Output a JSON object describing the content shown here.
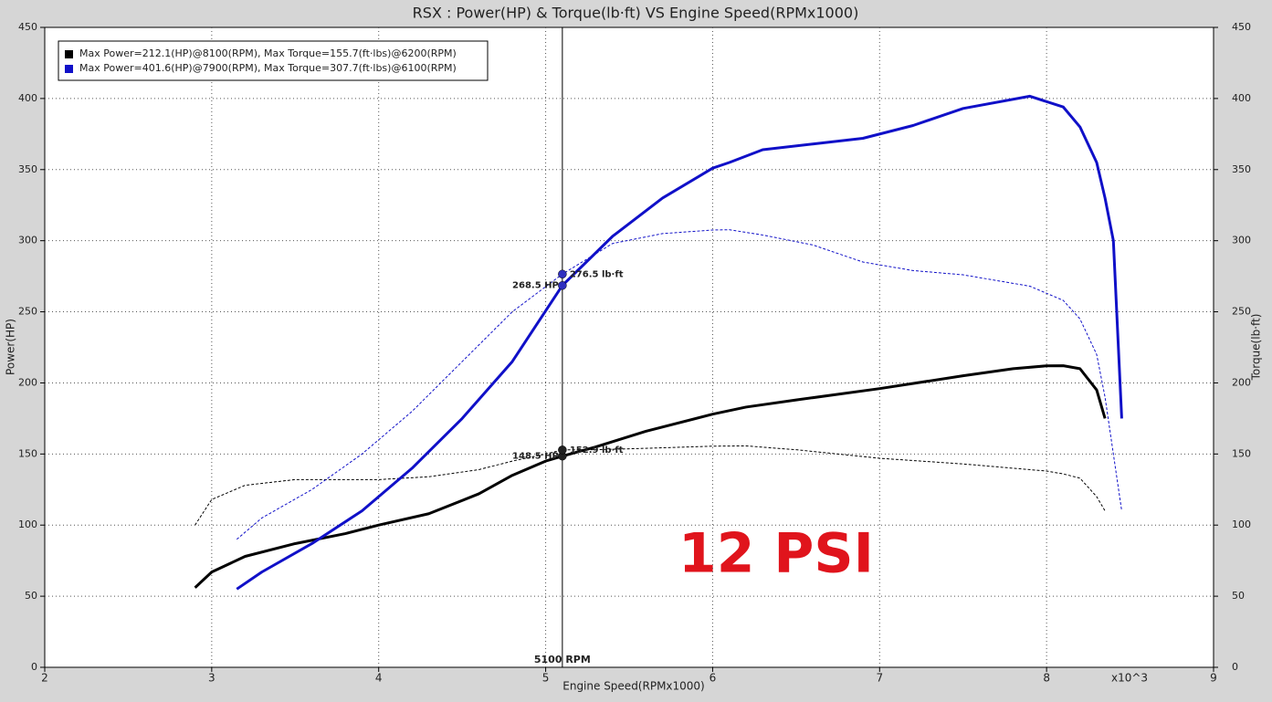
{
  "chart_data": {
    "type": "line",
    "title": "RSX : Power(HP) & Torque(lb·ft) VS Engine Speed(RPMx1000)",
    "xlabel": "Engine Speed(RPMx1000)",
    "ylabel": "Power(HP)",
    "y2label": "Torque(lb·ft)",
    "x_multiplier": "x10^3",
    "annotation": "12 PSI",
    "annotation_color": "#e0141c",
    "xlim": [
      2,
      9
    ],
    "xticks": [
      2,
      3,
      4,
      5,
      6,
      7,
      8,
      9
    ],
    "ylim": [
      0,
      450
    ],
    "yticks": [
      0,
      50,
      100,
      150,
      200,
      250,
      300,
      350,
      400,
      450
    ],
    "y2lim": [
      0,
      450
    ],
    "y2ticks": [
      0,
      50,
      100,
      150,
      200,
      250,
      300,
      350,
      400,
      450
    ],
    "grid": true,
    "legend": "upper left",
    "series": [
      {
        "name": "Max Power=212.1(HP)@8100(RPM), Max Torque=155.7(ft·lbs)@6200(RPM)",
        "color": "#000000",
        "x": [
          2.9,
          3.0,
          3.2,
          3.5,
          3.8,
          4.0,
          4.3,
          4.6,
          4.8,
          5.0,
          5.1,
          5.3,
          5.6,
          6.0,
          6.2,
          6.5,
          7.0,
          7.5,
          7.8,
          8.0,
          8.1,
          8.2,
          8.3,
          8.35
        ],
        "power": [
          56,
          67,
          78,
          87,
          94,
          100,
          108,
          122,
          135,
          145,
          148.5,
          155,
          166,
          178,
          183,
          188,
          196,
          205,
          210,
          212,
          212.1,
          210,
          195,
          175
        ],
        "torque": [
          100,
          118,
          128,
          132,
          132,
          132,
          134,
          139,
          145,
          150,
          152.9,
          153,
          154,
          155.5,
          155.7,
          153,
          147,
          143,
          140,
          138,
          136,
          133,
          120,
          110
        ]
      },
      {
        "name": "Max Power=401.6(HP)@7900(RPM), Max Torque=307.7(ft·lbs)@6100(RPM)",
        "color": "#1010c8",
        "x": [
          3.15,
          3.3,
          3.6,
          3.9,
          4.2,
          4.5,
          4.8,
          5.1,
          5.4,
          5.7,
          6.0,
          6.1,
          6.3,
          6.6,
          6.9,
          7.2,
          7.5,
          7.9,
          8.1,
          8.2,
          8.3,
          8.35,
          8.4,
          8.45
        ],
        "power": [
          55,
          67,
          87,
          110,
          140,
          175,
          215,
          268.5,
          303,
          330,
          351,
          355,
          364,
          368,
          372,
          381,
          393,
          401.6,
          394,
          380,
          355,
          330,
          300,
          175
        ],
        "torque": [
          90,
          105,
          125,
          150,
          180,
          215,
          250,
          276.5,
          298,
          305,
          307.5,
          307.7,
          304,
          297,
          285,
          279,
          276,
          268,
          258,
          245,
          220,
          190,
          150,
          110
        ]
      }
    ],
    "cursor": {
      "x": 5.1,
      "label": "5100 RPM",
      "readouts": [
        {
          "value": 268.5,
          "label": "268.5 HP",
          "color": "#3030c0"
        },
        {
          "value": 276.5,
          "label": "276.5 lb·ft",
          "color": "#3030c0"
        },
        {
          "value": 148.5,
          "label": "148.5 HP",
          "color": "#202020"
        },
        {
          "value": 152.9,
          "label": "152.9 lb·ft",
          "color": "#202020"
        }
      ]
    }
  }
}
